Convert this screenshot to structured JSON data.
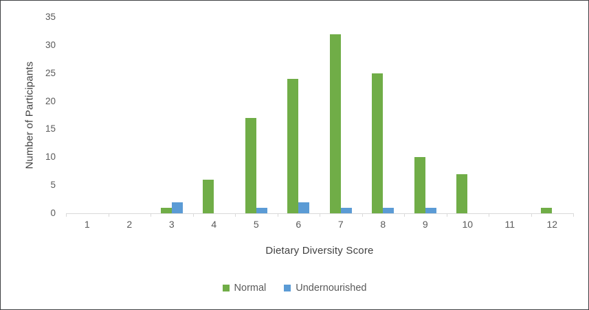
{
  "chart_data": {
    "type": "bar",
    "title": "",
    "categories": [
      "1",
      "2",
      "3",
      "4",
      "5",
      "6",
      "7",
      "8",
      "9",
      "10",
      "11",
      "12"
    ],
    "series": [
      {
        "name": "Normal",
        "color": "#70AD47",
        "values": [
          0,
          0,
          1,
          6,
          17,
          24,
          32,
          25,
          10,
          7,
          0,
          1
        ]
      },
      {
        "name": "Undernourished",
        "color": "#5B9BD5",
        "values": [
          0,
          0,
          2,
          0,
          1,
          2,
          1,
          1,
          1,
          0,
          0,
          0
        ]
      }
    ],
    "xlabel": "Dietary Diversity Score",
    "ylabel": "Number of Participants",
    "ylim": [
      0,
      35
    ],
    "ytick_step": 5,
    "yticks": [
      0,
      5,
      10,
      15,
      20,
      25,
      30,
      35
    ],
    "grid": false,
    "legend_position": "bottom",
    "axis_line_color": "#d9d9d9",
    "tick_label_color": "#595959",
    "axis_title_color": "#404040",
    "plot_background": "#ffffff"
  }
}
